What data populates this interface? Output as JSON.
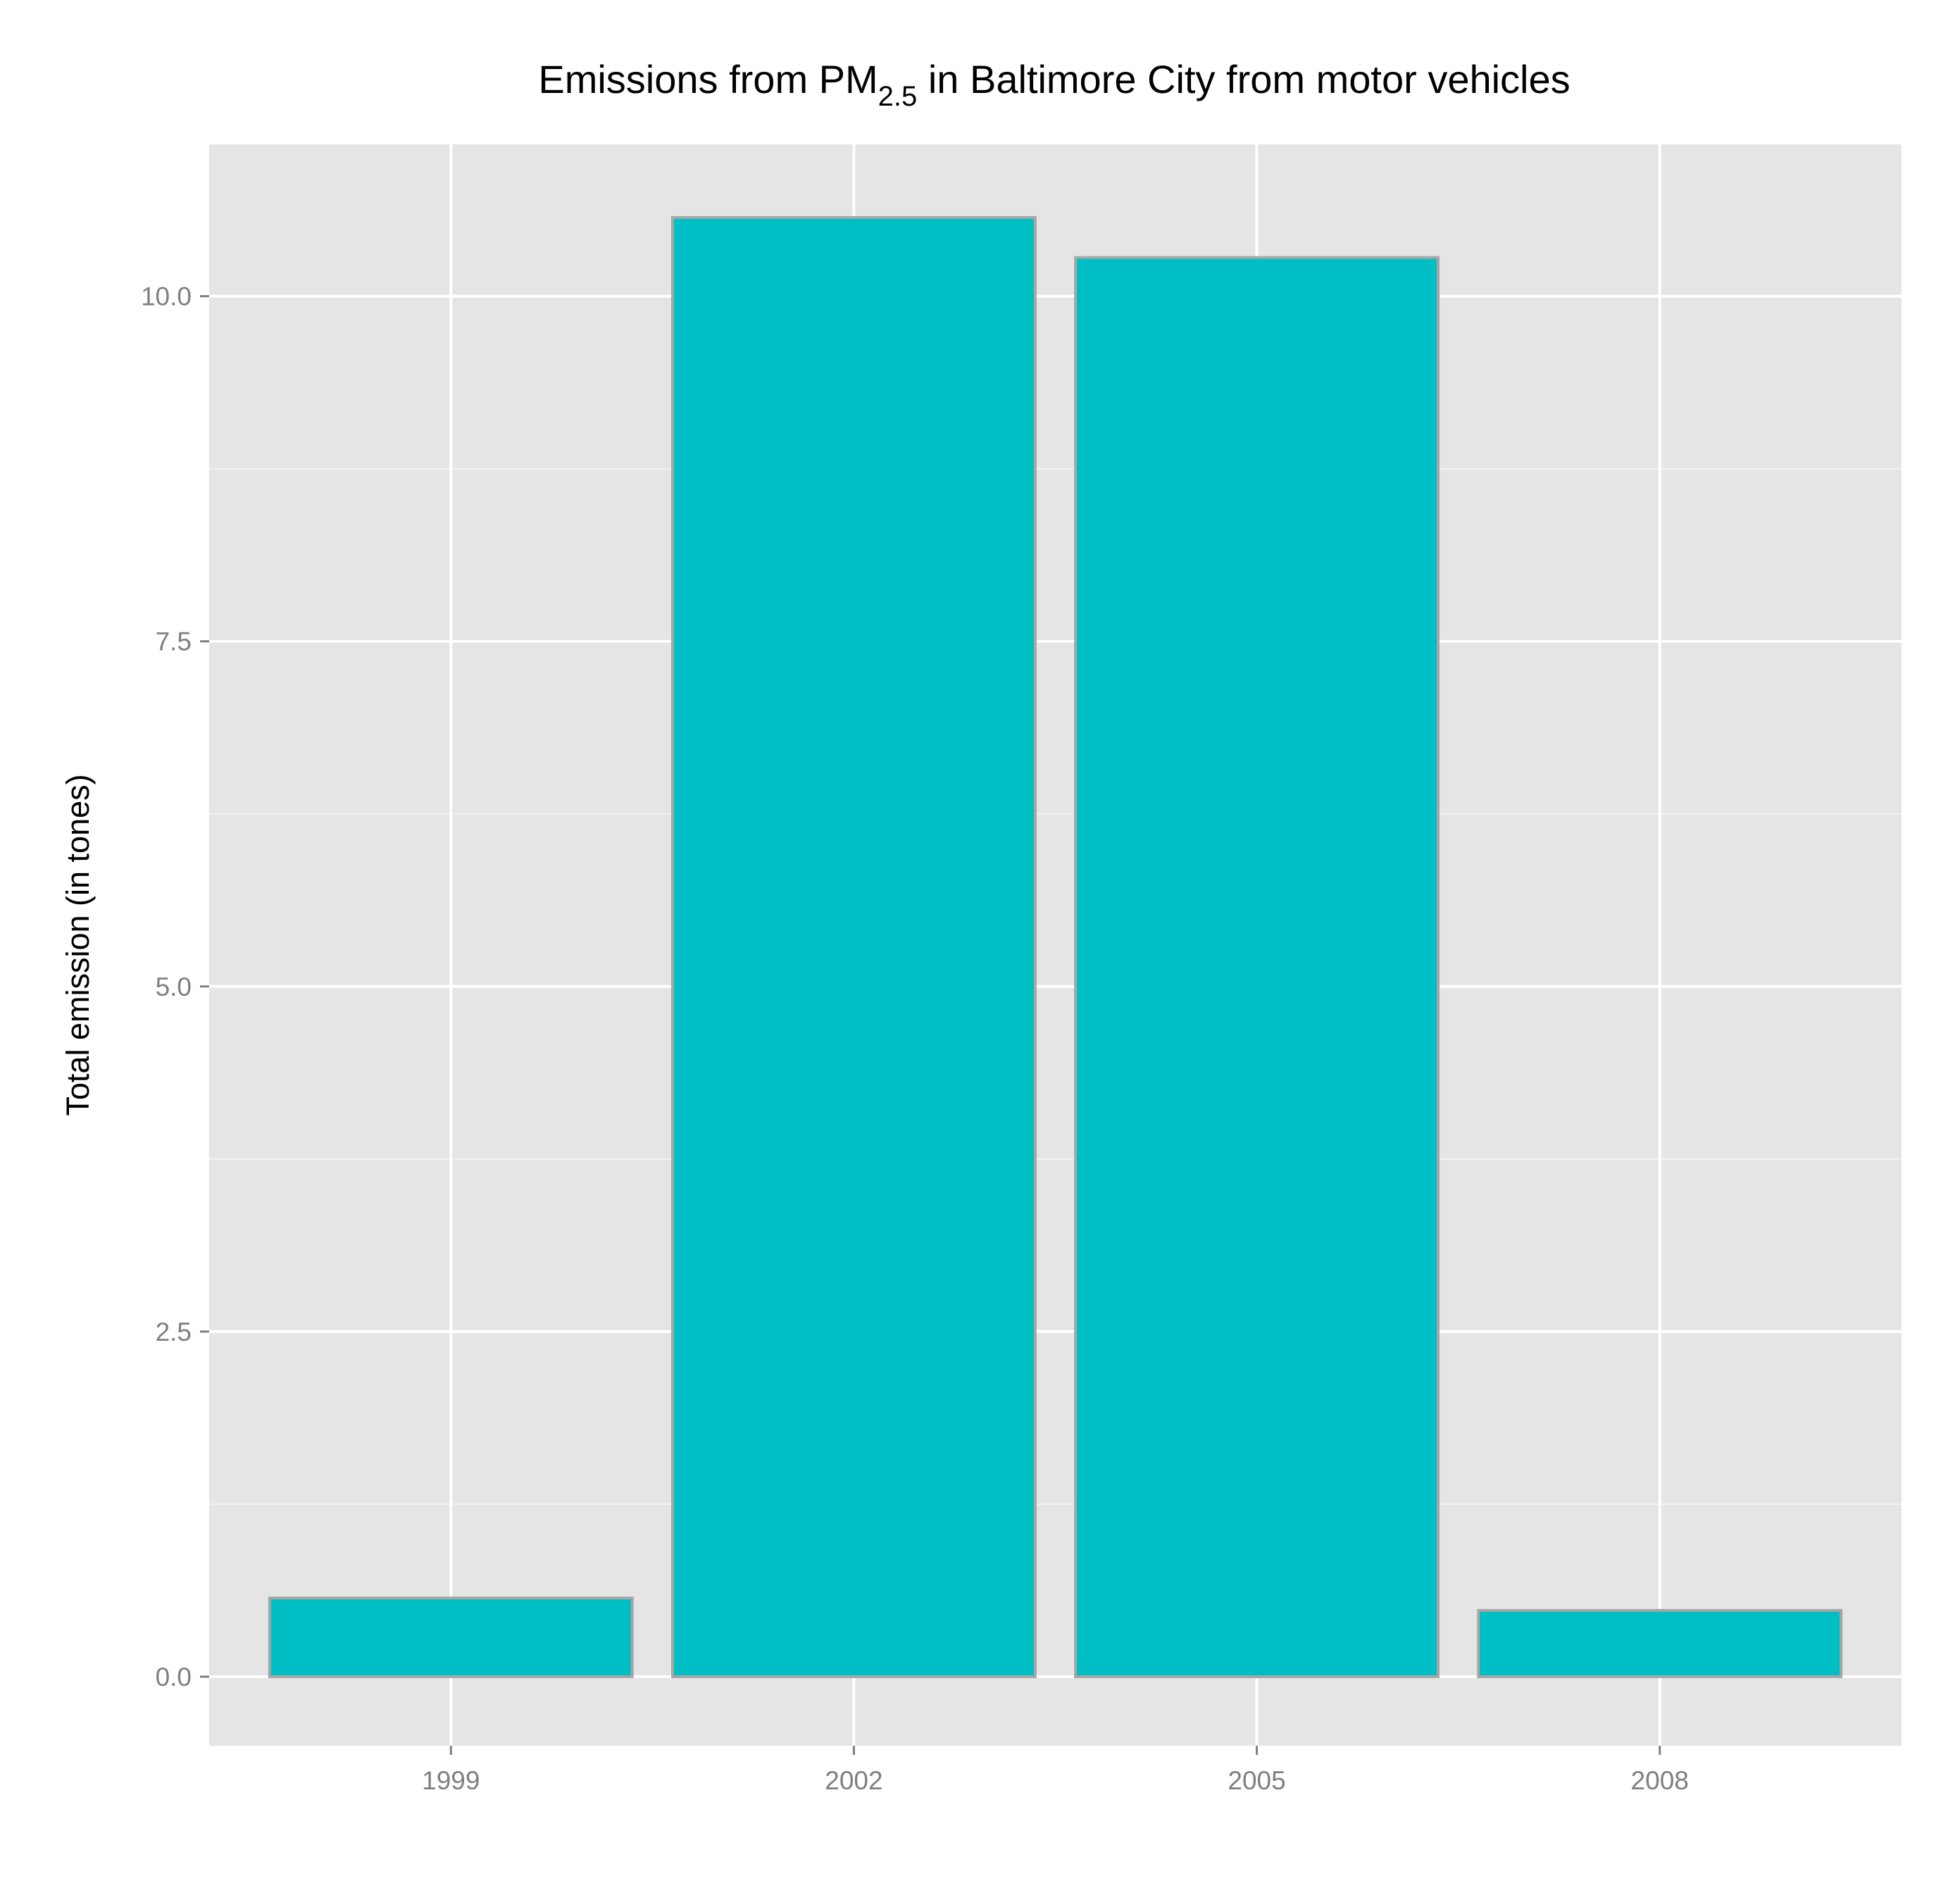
{
  "chart_data": {
    "type": "bar",
    "title": {
      "prefix": "Emissions from PM",
      "subscript": "2.5",
      "suffix": " in Baltimore City from motor vehicles"
    },
    "xlabel": "",
    "ylabel": "Total emission (in tones)",
    "categories": [
      "1999",
      "2002",
      "2005",
      "2008"
    ],
    "values": [
      0.57,
      10.57,
      10.28,
      0.48
    ],
    "ylim": [
      -0.5,
      11.1
    ],
    "yticks": [
      0.0,
      2.5,
      5.0,
      7.5,
      10.0
    ],
    "ytick_labels": [
      "0.0",
      "2.5",
      "5.0",
      "7.5",
      "10.0"
    ],
    "grid": true,
    "legend": "none",
    "colors": {
      "bar_fill": "#00BFC4",
      "bar_stroke": "#A6A6A6",
      "panel_background": "#E5E5E5",
      "grid_major": "#FFFFFF",
      "grid_minor": "#F2F2F2",
      "tick_text": "#7F7F7F",
      "tick_mark": "#7F7F7F"
    }
  }
}
